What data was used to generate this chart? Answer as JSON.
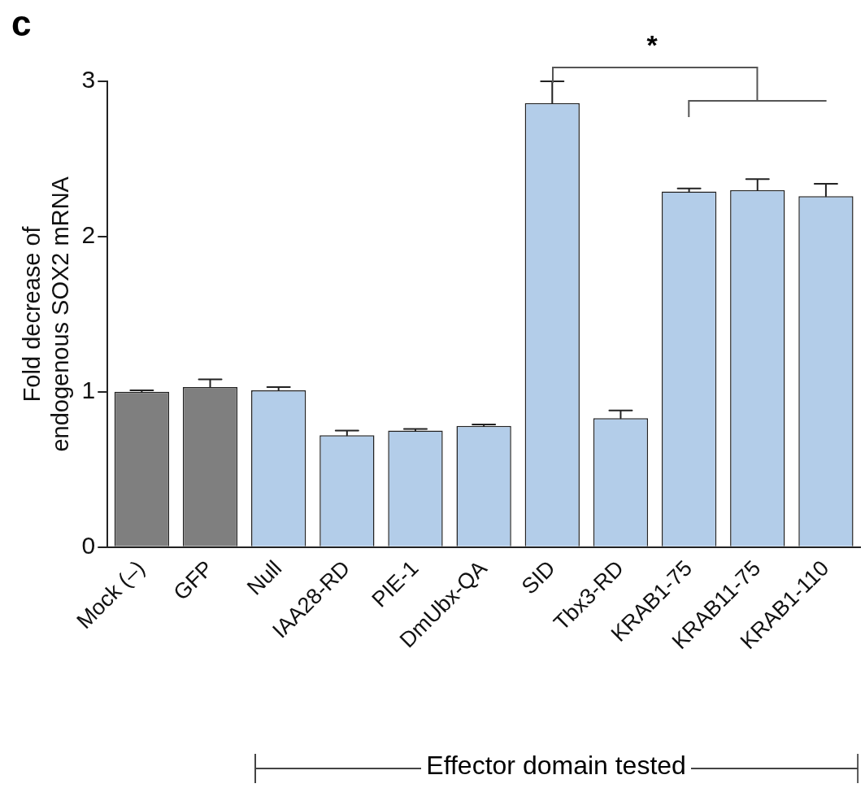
{
  "chart_data": {
    "type": "bar",
    "title": "c",
    "ylabel": "Fold decrease of endogenous SOX2 mRNA",
    "categories": [
      "Mock (–)",
      "GFP",
      "Null",
      "IAA28-RD",
      "PIE-1",
      "DmUbx-QA",
      "SID",
      "Tbx3-RD",
      "KRAB1-75",
      "KRAB11-75",
      "KRAB1-110"
    ],
    "values": [
      1.0,
      1.03,
      1.01,
      0.72,
      0.75,
      0.78,
      2.86,
      0.83,
      2.29,
      2.3,
      2.26
    ],
    "errors": [
      [
        1.0,
        1.01
      ],
      [
        1.03,
        1.08
      ],
      [
        1.01,
        1.03
      ],
      [
        0.72,
        0.75
      ],
      [
        0.75,
        0.76
      ],
      [
        0.78,
        0.79
      ],
      [
        2.86,
        3.0
      ],
      [
        0.83,
        0.88
      ],
      [
        2.29,
        2.31
      ],
      [
        2.3,
        2.37
      ],
      [
        2.26,
        2.34
      ]
    ],
    "colors": [
      "#7f7f7f",
      "#7f7f7f",
      "#b3cde9",
      "#b3cde9",
      "#b3cde9",
      "#b3cde9",
      "#b3cde9",
      "#b3cde9",
      "#b3cde9",
      "#b3cde9",
      "#b3cde9"
    ],
    "ylim": [
      0,
      3
    ],
    "yticks": [
      0,
      1,
      2,
      3
    ],
    "grid": false,
    "legend": false,
    "annotations": [
      "*",
      "Effector domain tested"
    ]
  }
}
